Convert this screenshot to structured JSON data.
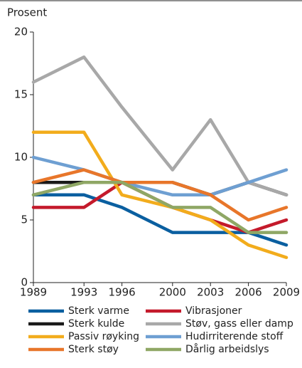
{
  "chart_data": {
    "type": "line",
    "ylabel": "Prosent",
    "x": [
      1989,
      1993,
      1996,
      2000,
      2003,
      2006,
      2009
    ],
    "xlim": [
      1989,
      2009
    ],
    "xticks": [
      1989,
      1993,
      1996,
      2000,
      2003,
      2006,
      2009
    ],
    "ylim": [
      0,
      20
    ],
    "yticks": [
      0,
      5,
      10,
      15,
      20
    ],
    "grid": false,
    "series": [
      {
        "name": "Sterk varme",
        "color": "#0a5fa0",
        "values": [
          7,
          7,
          6,
          4,
          4,
          4,
          3
        ]
      },
      {
        "name": "Vibrasjoner",
        "color": "#c41a2b",
        "values": [
          6,
          6,
          8,
          6,
          5,
          4,
          5
        ]
      },
      {
        "name": "Sterk kulde",
        "color": "#1a1a1a",
        "values": [
          8,
          8,
          8,
          8,
          7,
          8,
          7
        ]
      },
      {
        "name": "Støv, gass eller damp",
        "color": "#a8a8a8",
        "values": [
          16,
          18,
          14,
          9,
          13,
          8,
          7
        ]
      },
      {
        "name": "Passiv røyking",
        "color": "#f2ac1c",
        "values": [
          12,
          12,
          7,
          6,
          5,
          3,
          2
        ]
      },
      {
        "name": "Hudirriterende stoff",
        "color": "#6e9fd2",
        "values": [
          10,
          9,
          8,
          7,
          7,
          8,
          9
        ]
      },
      {
        "name": "Sterk støy",
        "color": "#e8762a",
        "values": [
          8,
          9,
          8,
          8,
          7,
          5,
          6
        ]
      },
      {
        "name": "Dårlig arbeidslys",
        "color": "#8fa765",
        "values": [
          7,
          8,
          8,
          6,
          6,
          4,
          4
        ]
      }
    ]
  }
}
